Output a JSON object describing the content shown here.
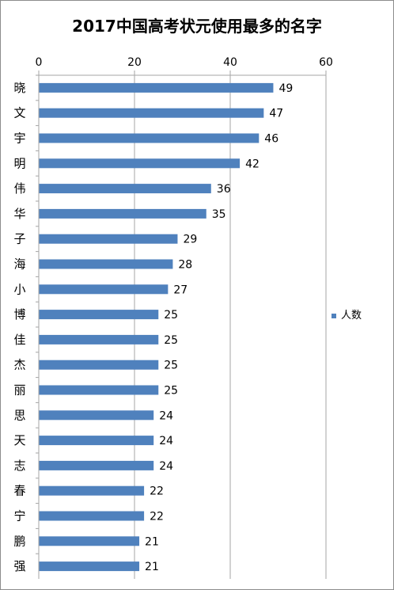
{
  "chart_data": {
    "type": "bar",
    "orientation": "horizontal",
    "title": "2017中国高考状元使用最多的名字",
    "categories": [
      "晓",
      "文",
      "宇",
      "明",
      "伟",
      "华",
      "子",
      "海",
      "小",
      "博",
      "佳",
      "杰",
      "丽",
      "思",
      "天",
      "志",
      "春",
      "宁",
      "鹏",
      "强"
    ],
    "series": [
      {
        "name": "人数",
        "values": [
          49,
          47,
          46,
          42,
          36,
          35,
          29,
          28,
          27,
          25,
          25,
          25,
          25,
          24,
          24,
          24,
          22,
          22,
          21,
          21
        ],
        "color": "#4f81bd"
      }
    ],
    "xlim": [
      0,
      60
    ],
    "xticks": [
      "0",
      "20",
      "40",
      "60"
    ],
    "x_axis_position": "top",
    "grid": "vertical",
    "legend": "right"
  }
}
